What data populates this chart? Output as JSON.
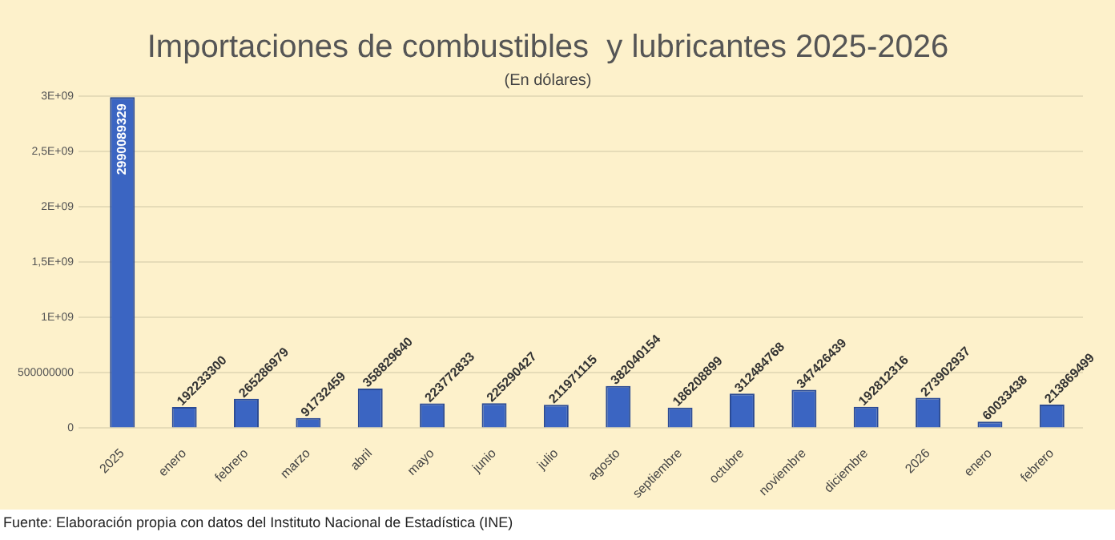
{
  "chart_data": {
    "type": "bar",
    "title": "Importaciones de combustibles  y lubricantes 2025-2026",
    "subtitle": "(En dólares)",
    "categories": [
      "2025",
      "enero",
      "febrero",
      "marzo",
      "abril",
      "mayo",
      "junio",
      "julio",
      "agosto",
      "septiembre",
      "octubre",
      "noviembre",
      "diciembre",
      "2026",
      "enero",
      "febrero"
    ],
    "values": [
      2990089329,
      192233300,
      265286979,
      91732459,
      358829640,
      223772833,
      225290427,
      211971115,
      382040154,
      186208899,
      312484768,
      347426439,
      192812316,
      273902937,
      60033438,
      213869499
    ],
    "color": "#3b65c2",
    "ylim": [
      0,
      3000000000
    ],
    "yticks": [
      0,
      500000000,
      {
        "value": 1000000000,
        "label": "1E+09"
      },
      {
        "value": 1500000000,
        "label": "1,5E+09"
      },
      {
        "value": 2000000000,
        "label": "2E+09"
      },
      {
        "value": 2500000000,
        "label": "2,5E+09"
      },
      {
        "value": 3000000000,
        "label": "3E+09"
      }
    ],
    "grid": "y",
    "legend": false,
    "data_labels": true,
    "annotations": [
      "Fuente: Elaboración propia con datos del Instituto Nacional de Estadística (INE)"
    ]
  }
}
